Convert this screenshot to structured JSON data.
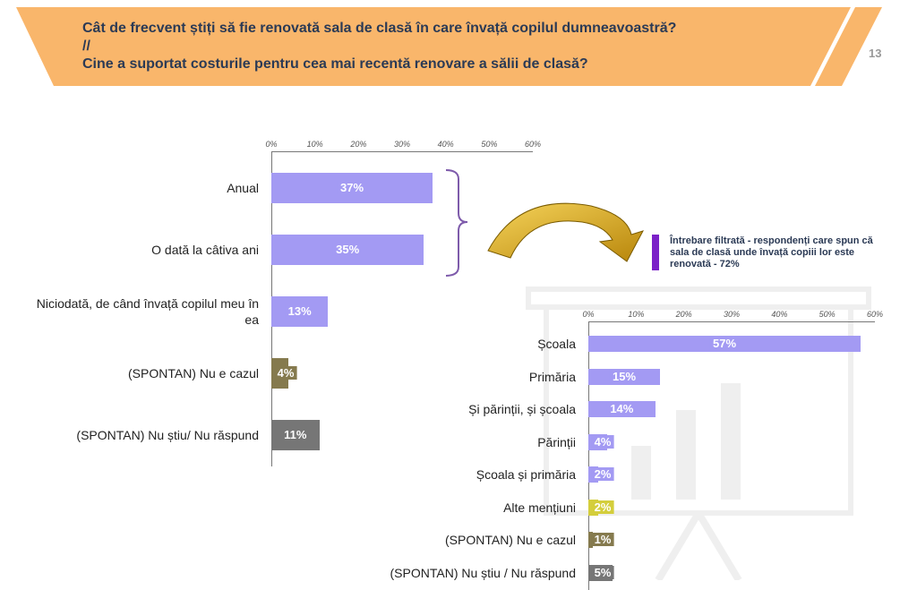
{
  "header": {
    "question_line1": "Cât de frecvent știți să fie renovată sala de clasă în care învață copilul dumneavoastră?",
    "separator": "//",
    "question_line2": "Cine a suportat costurile pentru cea mai recentă renovare a sălii de clasă?",
    "page_number": "13"
  },
  "note": "Întrebare filtrată - respondenți care spun că sala de clasă unde învață copiii lor este renovată - 72%",
  "chart_data": [
    {
      "type": "bar",
      "orientation": "horizontal",
      "title": "",
      "xlabel": "",
      "ylabel": "",
      "xlim": [
        0,
        60
      ],
      "ticks": [
        "0%",
        "10%",
        "20%",
        "30%",
        "40%",
        "50%",
        "60%"
      ],
      "categories": [
        "Anual",
        "O dată la câtiva ani",
        "Niciodată, de când învață copilul meu în ea",
        "(SPONTAN) Nu e cazul",
        "(SPONTAN) Nu știu/ Nu răspund"
      ],
      "values": [
        37,
        35,
        13,
        4,
        11
      ],
      "value_labels": [
        "37%",
        "35%",
        "13%",
        "4%",
        "11%"
      ],
      "colors": [
        "#a39af3",
        "#a39af3",
        "#a39af3",
        "#857a4e",
        "#767676"
      ]
    },
    {
      "type": "bar",
      "orientation": "horizontal",
      "title": "",
      "xlabel": "",
      "ylabel": "",
      "xlim": [
        0,
        60
      ],
      "ticks": [
        "0%",
        "10%",
        "20%",
        "30%",
        "40%",
        "50%",
        "60%"
      ],
      "categories": [
        "Școala",
        "Primăria",
        "Și părinții, și școala",
        "Părinții",
        "Școala și primăria",
        "Alte mențiuni",
        "(SPONTAN) Nu e cazul",
        "(SPONTAN) Nu știu / Nu răspund"
      ],
      "values": [
        57,
        15,
        14,
        4,
        2,
        2,
        1,
        5
      ],
      "value_labels": [
        "57%",
        "15%",
        "14%",
        "4%",
        "2%",
        "2%",
        "1%",
        "5%"
      ],
      "colors": [
        "#a39af3",
        "#a39af3",
        "#a39af3",
        "#a39af3",
        "#a39af3",
        "#d4ce3c",
        "#857a4e",
        "#767676"
      ]
    }
  ]
}
